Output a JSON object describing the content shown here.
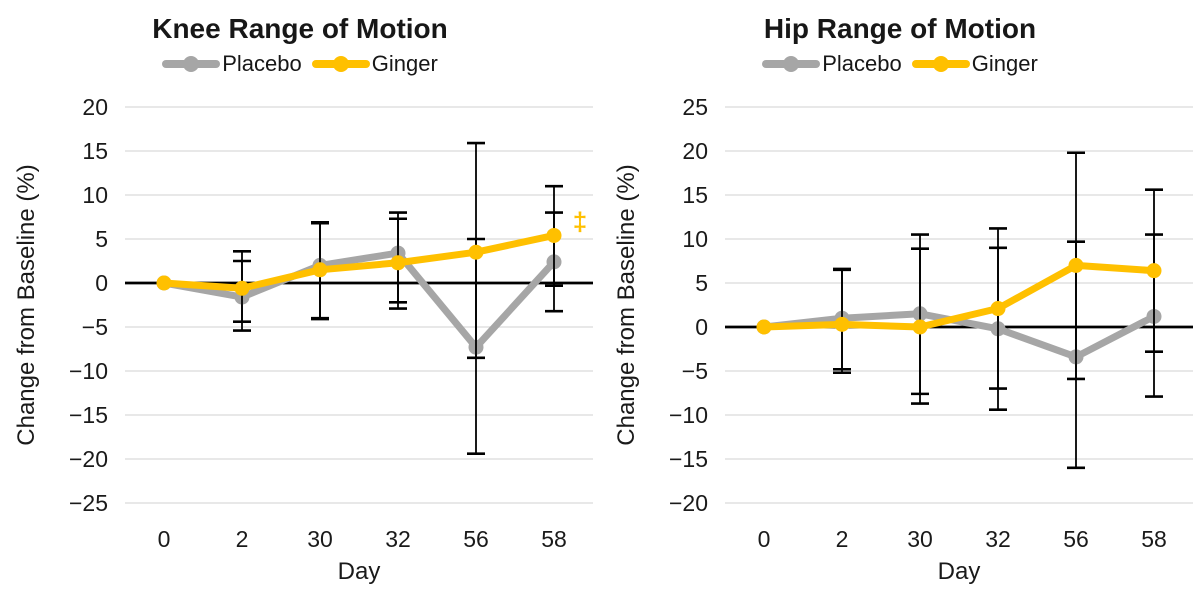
{
  "figure": {
    "background": "#ffffff"
  },
  "chart_data": [
    {
      "type": "line",
      "title": "Knee Range of Motion",
      "xlabel": "Day",
      "ylabel": "Change from Baseline (%)",
      "ylim": [
        -25,
        20
      ],
      "yticks": [
        20,
        15,
        10,
        5,
        0,
        -5,
        -10,
        -15,
        -20,
        -25
      ],
      "categories": [
        "0",
        "2",
        "30",
        "32",
        "56",
        "58"
      ],
      "grid": true,
      "legend_position": "top",
      "zero_axis": true,
      "series": [
        {
          "name": "Placebo",
          "color": "#A6A6A6",
          "values": [
            0,
            -1.6,
            2.0,
            3.4,
            -7.3,
            2.4
          ],
          "error_upper": [
            null,
            2.5,
            6.9,
            8.0,
            5.0,
            8.0
          ],
          "error_lower": [
            null,
            -5.4,
            -4.1,
            -2.2,
            -19.4,
            -3.2
          ]
        },
        {
          "name": "Ginger",
          "color": "#FFC000",
          "values": [
            0,
            -0.6,
            1.5,
            2.3,
            3.5,
            5.4
          ],
          "error_upper": [
            null,
            3.6,
            6.8,
            7.3,
            15.9,
            11.0
          ],
          "error_lower": [
            null,
            -4.4,
            -4.0,
            -2.9,
            -8.5,
            -0.3
          ]
        }
      ],
      "annotations": [
        {
          "text": "‡",
          "color": "#FFC000",
          "category_index": 5,
          "value": 7.0,
          "dx": 26
        }
      ]
    },
    {
      "type": "line",
      "title": "Hip Range of Motion",
      "xlabel": "Day",
      "ylabel": "Change from Baseline (%)",
      "ylim": [
        -20,
        25
      ],
      "yticks": [
        25,
        20,
        15,
        10,
        5,
        0,
        -5,
        -10,
        -15,
        -20
      ],
      "categories": [
        "0",
        "2",
        "30",
        "32",
        "56",
        "58"
      ],
      "grid": true,
      "legend_position": "top",
      "zero_axis": true,
      "series": [
        {
          "name": "Placebo",
          "color": "#A6A6A6",
          "values": [
            0,
            1.0,
            1.5,
            -0.2,
            -3.4,
            1.2
          ],
          "error_upper": [
            null,
            6.6,
            10.5,
            9.0,
            9.7,
            10.5
          ],
          "error_lower": [
            null,
            -5.2,
            -7.6,
            -9.4,
            -16.0,
            -7.9
          ]
        },
        {
          "name": "Ginger",
          "color": "#FFC000",
          "values": [
            0,
            0.3,
            0.0,
            2.1,
            7.0,
            6.4
          ],
          "error_upper": [
            null,
            6.5,
            8.9,
            11.2,
            19.8,
            15.6
          ],
          "error_lower": [
            null,
            -4.8,
            -8.7,
            -7.0,
            -5.9,
            -2.8
          ]
        }
      ],
      "annotations": []
    }
  ]
}
